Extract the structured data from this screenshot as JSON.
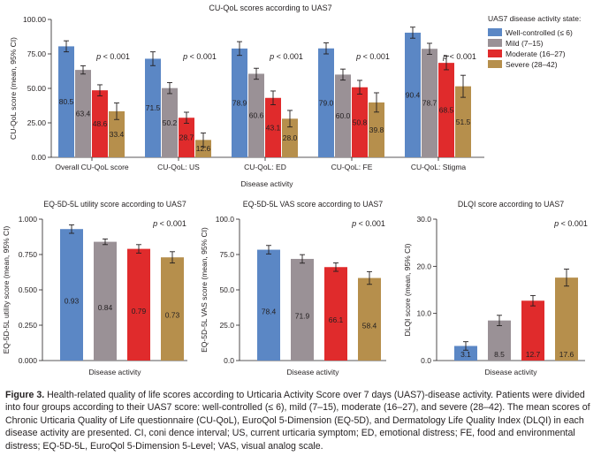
{
  "colors": {
    "well": "#5b87c5",
    "mild": "#9a9196",
    "moderate": "#e02b2c",
    "severe": "#b68f4c",
    "axis": "#231f20"
  },
  "legend": {
    "title": "UAS7 disease activity state:",
    "items": [
      "Well-controlled (≤ 6)",
      "Mild (7–15)",
      "Moderate (16–27)",
      "Severe (28–42)"
    ]
  },
  "caption": {
    "label": "Figure 3.",
    "text": "Health-related quality of life scores according to Urticaria Activity Score over 7 days (UAS7)-disease activity. Patients were divided into four groups according to their UAS7 score: well-controlled (≤ 6), mild (7–15), moderate (16–27), and severe (28–42). The mean scores of Chronic Urticaria Quality of Life questionnaire (CU-QoL), EuroQol 5-Dimension (EQ-5D), and Dermatology Life Quality Index (DLQI) in each disease activity are presented. CI, coni dence interval; US, current urticaria symptom; ED, emotional distress; FE, food and environmental distress; EQ-5D-5L, EuroQol 5-Dimension 5-Level; VAS, visual analog scale."
  },
  "chart_data": [
    {
      "type": "bar",
      "title": "CU-QoL scores according to UAS7",
      "xlabel": "Disease activity",
      "ylabel": "CU-QoL score (mean, 95% CI)",
      "ylim": [
        0,
        100
      ],
      "yticks": [
        "0.00",
        "25.00",
        "50.00",
        "75.00",
        "100.00"
      ],
      "categories": [
        "Overall CU-QoL score",
        "CU-QoL: US",
        "CU-QoL: ED",
        "CU-QoL: FE",
        "CU-QoL: Stigma"
      ],
      "series": [
        {
          "name": "Well-controlled (≤ 6)",
          "values": [
            80.5,
            71.5,
            78.9,
            79.0,
            90.4
          ],
          "err": [
            4,
            5,
            5,
            4,
            4
          ]
        },
        {
          "name": "Mild (7–15)",
          "values": [
            63.4,
            50.2,
            60.6,
            60.0,
            78.7
          ],
          "err": [
            3,
            4,
            4,
            4,
            4
          ]
        },
        {
          "name": "Moderate (16–27)",
          "values": [
            48.6,
            28.7,
            43.1,
            50.8,
            68.5
          ],
          "err": [
            4,
            4,
            5,
            5,
            5
          ]
        },
        {
          "name": "Severe (28–42)",
          "values": [
            33.4,
            12.6,
            28.0,
            39.8,
            51.5
          ],
          "err": [
            6,
            5,
            6,
            7,
            8
          ]
        }
      ],
      "value_labels": [
        [
          "80.5",
          "71.5",
          "78.9",
          "79.0",
          "90.4"
        ],
        [
          "63.4",
          "50.2",
          "60.6",
          "60.0",
          "78.7"
        ],
        [
          "48.6",
          "28.7",
          "43.1",
          "50.8",
          "68.5"
        ],
        [
          "33.4",
          "12.6",
          "28.0",
          "39.8",
          "51.5"
        ]
      ],
      "annotations": [
        "p < 0.001",
        "p < 0.001",
        "p < 0.001",
        "p < 0.001",
        "p < 0.001"
      ],
      "grid": false,
      "legend_position": "right"
    },
    {
      "type": "bar",
      "title": "EQ-5D-5L utility score according to UAS7",
      "xlabel": "Disease activity",
      "ylabel": "EQ-5D-5L utility score (mean, 95% CI)",
      "ylim": [
        0,
        1.0
      ],
      "yticks": [
        "0.000",
        "0.250",
        "0.500",
        "0.750",
        "1.000"
      ],
      "values": [
        0.93,
        0.84,
        0.79,
        0.73
      ],
      "err": [
        0.03,
        0.02,
        0.03,
        0.04
      ],
      "value_labels": [
        "0.93",
        "0.84",
        "0.79",
        "0.73"
      ],
      "annotation": "p < 0.001"
    },
    {
      "type": "bar",
      "title": "EQ-5D-5L VAS score according to UAS7",
      "xlabel": "Disease activity",
      "ylabel": "EQ-5D-5L VAS score (mean, 95% CI)",
      "ylim": [
        0,
        100
      ],
      "yticks": [
        "0.0",
        "25.0",
        "50.0",
        "75.0",
        "100.0"
      ],
      "values": [
        78.4,
        71.9,
        66.1,
        58.4
      ],
      "err": [
        3,
        3,
        3,
        4.5
      ],
      "value_labels": [
        "78.4",
        "71.9",
        "66.1",
        "58.4"
      ],
      "annotation": "p < 0.001"
    },
    {
      "type": "bar",
      "title": "DLQI score according to UAS7",
      "xlabel": "Disease activity",
      "ylabel": "DLQI score (mean, 95% CI)",
      "ylim": [
        0,
        30
      ],
      "yticks": [
        "0.0",
        "10.0",
        "20.0",
        "30.0"
      ],
      "values": [
        3.1,
        8.5,
        12.7,
        17.6
      ],
      "err": [
        0.9,
        1.1,
        1.1,
        1.8
      ],
      "value_labels": [
        "3.1",
        "8.5",
        "12.7",
        "17.6"
      ],
      "annotation": "p < 0.001"
    }
  ]
}
